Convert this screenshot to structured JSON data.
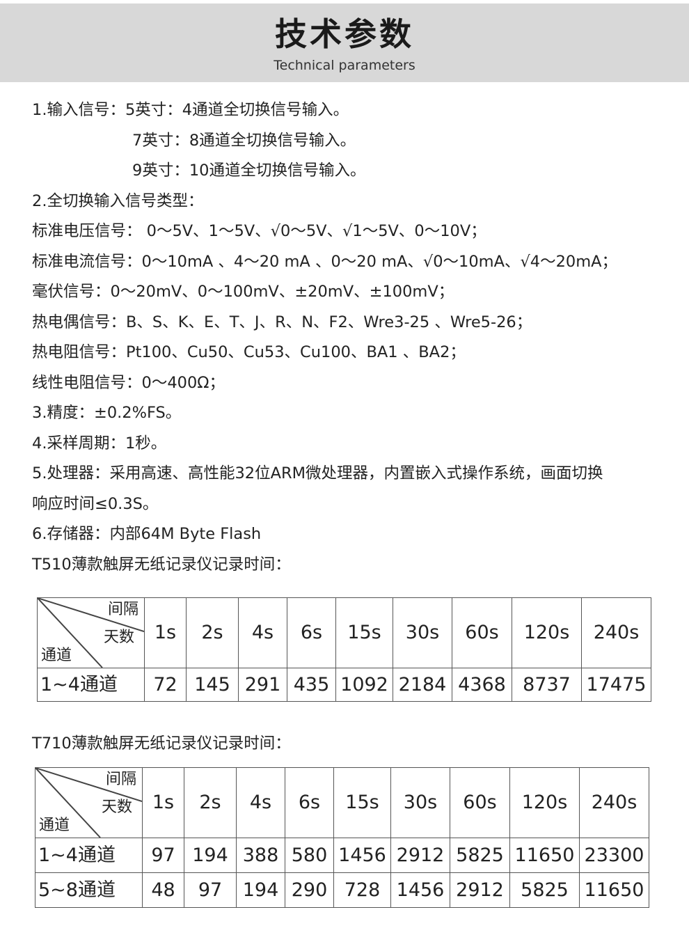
{
  "header": {
    "title": "技术参数",
    "subtitle": "Technical parameters"
  },
  "lines": [
    "1.输入信号：5英寸：4通道全切换信号输入。",
    "7英寸：8通道全切换信号输入。",
    "9英寸：10通道全切换信号输入。",
    "2.全切换输入信号类型：",
    "标准电压信号： 0～5V、1～5V、√0～5V、√1～5V、0～10V；",
    "标准电流信号：0～10mA 、4～20 mA 、0～20 mA、√0～10mA、√4～20mA；",
    "毫伏信号：0～20mV、0～100mV、±20mV、±100mV；",
    "热电偶信号：B、S、K、E、T、J、R、N、F2、Wre3-25 、Wre5-26；",
    "热电阻信号：Pt100、Cu50、Cu53、Cu100、BA1 、BA2；",
    "线性电阻信号：0～400Ω；",
    "3.精度：±0.2%FS。",
    "4.采样周期：1秒。",
    "5.处理器：采用高速、高性能32位ARM微处理器，内置嵌入式操作系统，画面切换",
    "响应时间≤0.3S。",
    "6.存储器：内部64M Byte Flash",
    "T510薄款触屏无纸记录仪记录时间："
  ],
  "corner": {
    "interval": "间隔",
    "days": "天数",
    "channel": "通道"
  },
  "intervals": [
    "1s",
    "2s",
    "4s",
    "6s",
    "15s",
    "30s",
    "60s",
    "120s",
    "240s"
  ],
  "table1": {
    "rows": [
      {
        "label": "1~4通道",
        "values": [
          "72",
          "145",
          "291",
          "435",
          "1092",
          "2184",
          "4368",
          "8737",
          "17475"
        ]
      }
    ]
  },
  "caption2": "T710薄款触屏无纸记录仪记录时间：",
  "table2": {
    "rows": [
      {
        "label": "1~4通道",
        "values": [
          "97",
          "194",
          "388",
          "580",
          "1456",
          "2912",
          "5825",
          "11650",
          "23300"
        ]
      },
      {
        "label": "5~8通道",
        "values": [
          "48",
          "97",
          "194",
          "290",
          "728",
          "1456",
          "2912",
          "5825",
          "11650"
        ]
      }
    ]
  }
}
